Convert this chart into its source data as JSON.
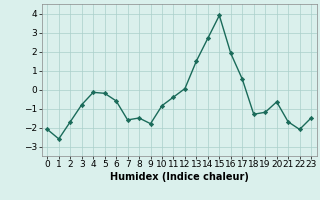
{
  "x": [
    0,
    1,
    2,
    3,
    4,
    5,
    6,
    7,
    8,
    9,
    10,
    11,
    12,
    13,
    14,
    15,
    16,
    17,
    18,
    19,
    20,
    21,
    22,
    23
  ],
  "y": [
    -2.1,
    -2.6,
    -1.7,
    -0.8,
    -0.15,
    -0.2,
    -0.6,
    -1.6,
    -1.5,
    -1.8,
    -0.85,
    -0.4,
    0.05,
    1.5,
    2.7,
    3.9,
    1.9,
    0.55,
    -1.3,
    -1.2,
    -0.65,
    -1.7,
    -2.1,
    -1.5
  ],
  "line_color": "#1a6b5a",
  "marker_color": "#1a6b5a",
  "bg_color": "#daf0ec",
  "grid_color": "#aacfca",
  "xlabel": "Humidex (Indice chaleur)",
  "ylim": [
    -3.5,
    4.5
  ],
  "xlim": [
    -0.5,
    23.5
  ],
  "yticks": [
    -3,
    -2,
    -1,
    0,
    1,
    2,
    3,
    4
  ],
  "xtick_labels": [
    "0",
    "1",
    "2",
    "3",
    "4",
    "5",
    "6",
    "7",
    "8",
    "9",
    "10",
    "11",
    "12",
    "13",
    "14",
    "15",
    "16",
    "17",
    "18",
    "19",
    "20",
    "21",
    "22",
    "23"
  ],
  "label_fontsize": 7,
  "tick_fontsize": 6.5
}
